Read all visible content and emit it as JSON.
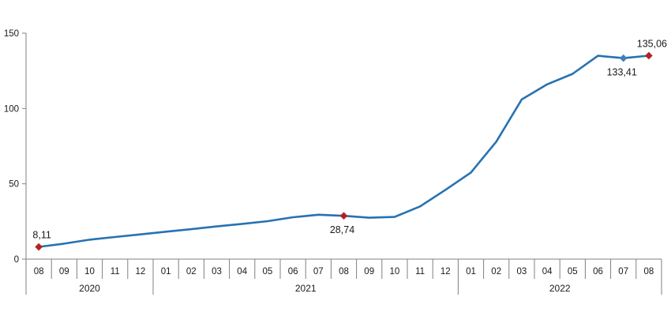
{
  "chart_data": {
    "type": "line",
    "title": "",
    "xlabel": "",
    "ylabel": "",
    "ylim": [
      0,
      150
    ],
    "y_ticks": [
      "0",
      "50",
      "100",
      "150"
    ],
    "grid": false,
    "legend": "none",
    "x_months": [
      "08",
      "09",
      "10",
      "11",
      "12",
      "01",
      "02",
      "03",
      "04",
      "05",
      "06",
      "07",
      "08",
      "09",
      "10",
      "11",
      "12",
      "01",
      "02",
      "03",
      "04",
      "05",
      "06",
      "07",
      "08"
    ],
    "year_groups": [
      {
        "label": "2020",
        "count": 5
      },
      {
        "label": "2021",
        "count": 12
      },
      {
        "label": "2022",
        "count": 8
      }
    ],
    "values": [
      8.11,
      10.3,
      12.9,
      14.7,
      16.4,
      18.2,
      19.9,
      21.7,
      23.4,
      25.2,
      27.8,
      29.5,
      28.74,
      27.5,
      28.0,
      35.0,
      46.0,
      57.5,
      78.0,
      106.0,
      116.0,
      123.0,
      135.0,
      133.41,
      135.06
    ],
    "annotations": [
      {
        "index": 0,
        "text": "8,11",
        "marker": "red-diamond",
        "label_position": "above"
      },
      {
        "index": 12,
        "text": "28,74",
        "marker": "red-diamond",
        "label_position": "below"
      },
      {
        "index": 23,
        "text": "133,41",
        "marker": "blue-diamond",
        "label_position": "below"
      },
      {
        "index": 24,
        "text": "135,06",
        "marker": "red-diamond",
        "label_position": "above"
      }
    ],
    "colors": {
      "line": "#2772B2",
      "marker_red": "#B22222",
      "marker_blue": "#3F7FBC",
      "axis": "#808080",
      "text": "#1a1a1a"
    }
  }
}
